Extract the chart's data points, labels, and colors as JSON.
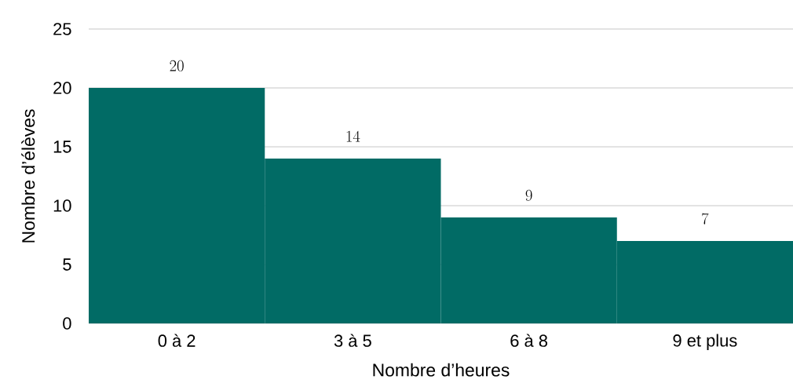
{
  "chart_data": {
    "type": "bar",
    "xlabel": "Nombre d’heures",
    "ylabel": "Nombre d’élèves",
    "categories": [
      "0 à 2",
      "3 à 5",
      "6 à 8",
      "9 et plus"
    ],
    "values": [
      20,
      14,
      9,
      7
    ],
    "color": "#016b65",
    "ylim": [
      0,
      25
    ],
    "yticks": [
      0,
      5,
      10,
      15,
      20,
      25
    ],
    "grid": "y",
    "data_labels": true
  }
}
